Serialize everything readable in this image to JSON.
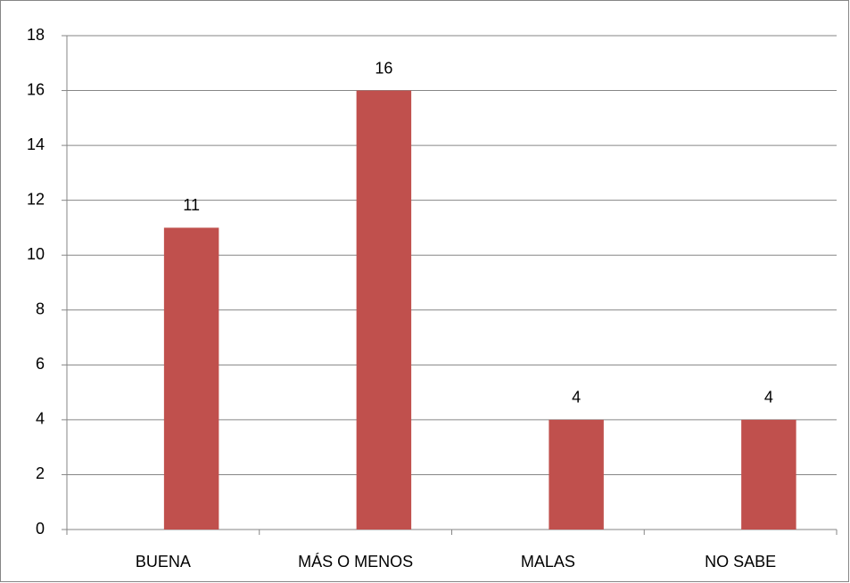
{
  "chart_data": {
    "type": "bar",
    "categories": [
      "BUENA",
      "MÁS O MENOS",
      "MALAS",
      "NO SABE"
    ],
    "values": [
      11,
      16,
      4,
      4
    ],
    "color": "#c0504d",
    "ylim": [
      0,
      18
    ],
    "yticks": [
      0,
      2,
      4,
      6,
      8,
      10,
      12,
      14,
      16,
      18
    ],
    "grid": true,
    "data_labels": true
  }
}
